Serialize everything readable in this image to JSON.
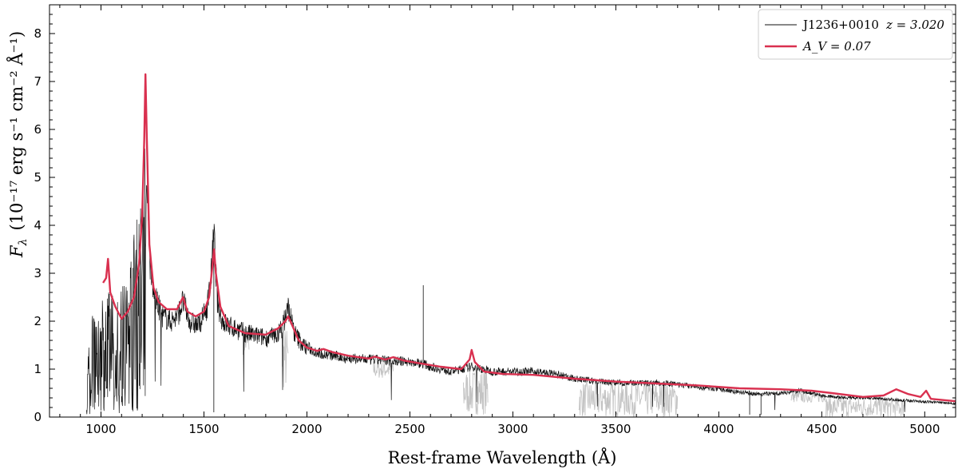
{
  "chart_data": {
    "type": "line",
    "xlabel": "Rest-frame Wavelength  (Å)",
    "ylabel_main": "F",
    "ylabel_sub": "λ",
    "ylabel_units": "(10⁻¹⁷ erg s⁻¹ cm⁻² Å⁻¹)",
    "xlim": [
      750,
      5150
    ],
    "ylim": [
      0,
      8.6
    ],
    "xticks": [
      1000,
      1500,
      2000,
      2500,
      3000,
      3500,
      4000,
      4500,
      5000
    ],
    "yticks": [
      0,
      1,
      2,
      3,
      4,
      5,
      6,
      7,
      8
    ],
    "grid": false,
    "legend_placement": "top-right",
    "legend": {
      "object_label": "J1236+0010",
      "redshift_label": "z = 3.020",
      "model_label": "A_V = 0.07"
    },
    "colors": {
      "observed": "#111111",
      "masked": "#c4c4c4",
      "model": "#d9304f"
    },
    "series": [
      {
        "name": "J1236+0010",
        "style": "thin-line",
        "x": [
          930,
          960,
          1000,
          1040,
          1080,
          1120,
          1160,
          1190,
          1205,
          1216,
          1226,
          1240,
          1260,
          1280,
          1300,
          1340,
          1370,
          1398,
          1430,
          1470,
          1510,
          1530,
          1549,
          1565,
          1590,
          1620,
          1650,
          1700,
          1750,
          1800,
          1850,
          1880,
          1909,
          1940,
          1980,
          2050,
          2100,
          2200,
          2300,
          2400,
          2500,
          2560,
          2600,
          2700,
          2750,
          2800,
          2900,
          3000,
          3100,
          3200,
          3300,
          3400,
          3500,
          3600,
          3700,
          3800,
          3900,
          4000,
          4100,
          4200,
          4300,
          4400,
          4500,
          4600,
          4700,
          4800,
          4900,
          5000,
          5100,
          5150
        ],
        "values": [
          0.6,
          1.3,
          1.5,
          1.6,
          1.5,
          1.7,
          2.3,
          2.6,
          3.0,
          3.8,
          5.1,
          3.0,
          2.5,
          2.3,
          2.1,
          2.0,
          2.1,
          2.4,
          2.0,
          1.9,
          2.2,
          2.7,
          3.8,
          2.4,
          2.0,
          1.9,
          1.85,
          1.75,
          1.7,
          1.65,
          1.7,
          1.85,
          2.3,
          1.75,
          1.5,
          1.35,
          1.3,
          1.22,
          1.2,
          1.18,
          1.15,
          1.12,
          1.05,
          0.95,
          1.0,
          1.05,
          0.95,
          0.95,
          0.95,
          0.9,
          0.8,
          0.75,
          0.72,
          0.7,
          0.72,
          0.68,
          0.62,
          0.58,
          0.52,
          0.48,
          0.5,
          0.55,
          0.45,
          0.4,
          0.4,
          0.38,
          0.35,
          0.32,
          0.3,
          0.28
        ]
      },
      {
        "name": "A_V = 0.07",
        "style": "model-line",
        "x": [
          1010,
          1025,
          1034,
          1045,
          1070,
          1100,
          1130,
          1160,
          1185,
          1200,
          1210,
          1216,
          1222,
          1235,
          1255,
          1280,
          1320,
          1370,
          1398,
          1420,
          1460,
          1500,
          1525,
          1540,
          1549,
          1558,
          1580,
          1620,
          1700,
          1800,
          1860,
          1895,
          1909,
          1925,
          1960,
          2000,
          2050,
          2080,
          2120,
          2200,
          2300,
          2330,
          2380,
          2420,
          2470,
          2550,
          2650,
          2750,
          2790,
          2800,
          2815,
          2860,
          2950,
          3100,
          3300,
          3500,
          3700,
          3900,
          4100,
          4300,
          4450,
          4550,
          4700,
          4800,
          4862,
          4920,
          4980,
          5007,
          5030,
          5150
        ],
        "values": [
          2.8,
          2.9,
          3.3,
          2.6,
          2.3,
          2.05,
          2.2,
          2.5,
          3.2,
          4.2,
          5.8,
          7.15,
          5.9,
          3.6,
          2.7,
          2.4,
          2.25,
          2.25,
          2.5,
          2.2,
          2.1,
          2.2,
          2.5,
          3.1,
          3.5,
          3.0,
          2.3,
          1.9,
          1.75,
          1.72,
          1.85,
          2.0,
          2.1,
          1.95,
          1.6,
          1.45,
          1.38,
          1.42,
          1.36,
          1.28,
          1.22,
          1.26,
          1.2,
          1.25,
          1.18,
          1.12,
          1.05,
          1.0,
          1.2,
          1.4,
          1.15,
          0.95,
          0.9,
          0.88,
          0.8,
          0.74,
          0.7,
          0.66,
          0.6,
          0.58,
          0.55,
          0.5,
          0.42,
          0.45,
          0.58,
          0.48,
          0.42,
          0.55,
          0.38,
          0.33
        ]
      }
    ],
    "masked_regions": [
      {
        "x": [
          1690,
          1720
        ],
        "min": 1.3,
        "max": 1.75
      },
      {
        "x": [
          1880,
          1910
        ],
        "min": 0.55,
        "max": 1.9
      },
      {
        "x": [
          2320,
          2420
        ],
        "min": 0.8,
        "max": 1.2
      },
      {
        "x": [
          2760,
          2880
        ],
        "min": 0.05,
        "max": 1.0
      },
      {
        "x": [
          3320,
          3800
        ],
        "min": 0.0,
        "max": 0.75
      },
      {
        "x": [
          4350,
          4520
        ],
        "min": 0.3,
        "max": 0.55
      },
      {
        "x": [
          4520,
          4900
        ],
        "min": 0.0,
        "max": 0.42
      }
    ]
  }
}
